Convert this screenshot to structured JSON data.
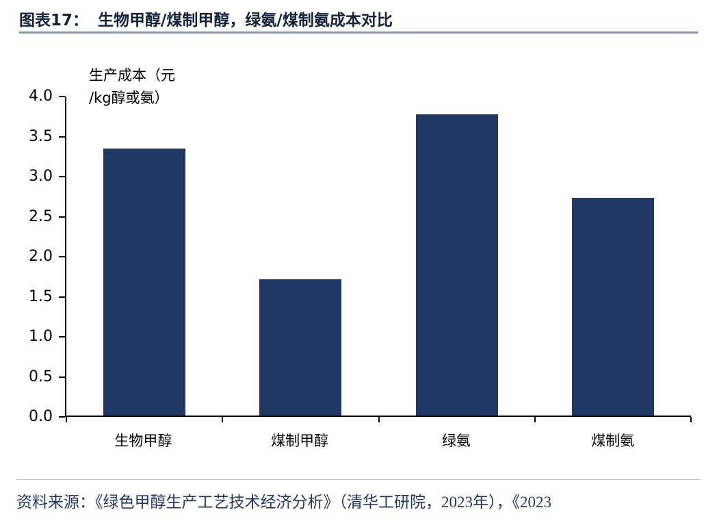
{
  "header": {
    "label_prefix": "图表17：",
    "title": "生物甲醇/煤制甲醇，绿氨/煤制氨成本对比"
  },
  "chart_data": {
    "type": "bar",
    "title": "生物甲醇/煤制甲醇，绿氨/煤制氨成本对比",
    "ylabel_line1": "生产成本（元",
    "ylabel_line2": "/kg醇或氨）",
    "xlabel": "",
    "categories": [
      "生物甲醇",
      "煤制甲醇",
      "绿氨",
      "煤制氨"
    ],
    "values": [
      3.35,
      1.71,
      3.78,
      2.73
    ],
    "ylim": [
      0,
      4.0
    ],
    "ytick_labels": [
      "4.0",
      "3.5",
      "3.0",
      "2.5",
      "2.0",
      "1.5",
      "1.0",
      "0.5",
      "0.0"
    ],
    "grid": false,
    "legend_position": "none",
    "bar_color": "#1F3864"
  },
  "footer": {
    "source": "资料来源：《绿色甲醇生产工艺技术经济分析》（清华工研院，2023年），《2023"
  },
  "colors": {
    "bar": "#1F3864",
    "title_underline": "#8496B0",
    "source_text": "#1F3864",
    "axis": "#000000"
  }
}
